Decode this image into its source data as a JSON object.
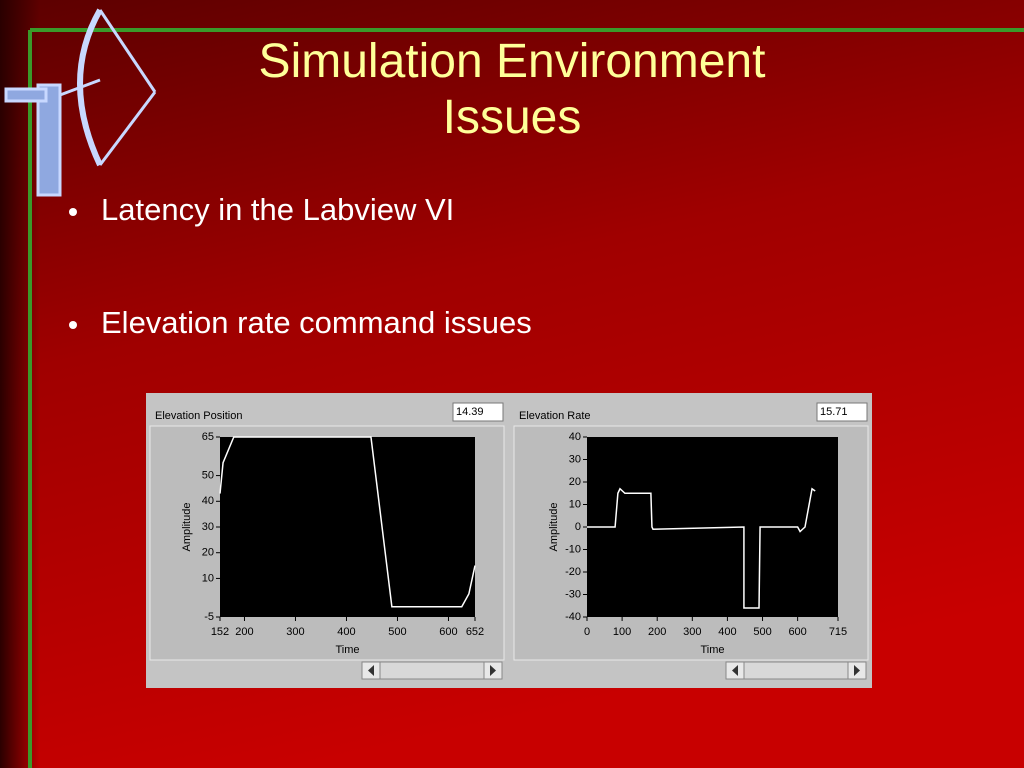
{
  "title": "Simulation Environment Issues",
  "bullets": [
    "Latency in the Labview VI",
    "Elevation rate command issues"
  ],
  "chart_data": [
    {
      "type": "line",
      "title": "Elevation Position",
      "readout": 14.39,
      "xlabel": "Time",
      "ylabel": "Amplitude",
      "x": [
        152,
        158,
        179,
        448,
        489,
        626,
        640,
        652
      ],
      "values": [
        43,
        55,
        65,
        65,
        -1,
        -1,
        4,
        15
      ],
      "color": "#ffffff",
      "grid": false,
      "xlim": [
        152,
        652
      ],
      "xticks": [
        152,
        200,
        300,
        400,
        500,
        600,
        652
      ],
      "ylim": [
        -5,
        65
      ],
      "yticks": [
        -5,
        10,
        20,
        30,
        40,
        50,
        65
      ]
    },
    {
      "type": "line",
      "title": "Elevation Rate",
      "readout": 15.71,
      "xlabel": "Time",
      "ylabel": "Amplitude",
      "x": [
        0,
        80,
        88,
        94,
        108,
        182,
        185,
        188,
        447,
        447,
        490,
        493,
        600,
        607,
        614,
        621,
        641,
        650
      ],
      "values": [
        0,
        0,
        15,
        17,
        15,
        15,
        0,
        -1,
        0,
        -36,
        -36,
        0,
        0,
        -2,
        -1,
        0,
        17,
        16
      ],
      "color": "#ffffff",
      "grid": false,
      "xlim": [
        0,
        715
      ],
      "xticks": [
        0,
        100,
        200,
        300,
        400,
        500,
        600,
        715
      ],
      "ylim": [
        -40,
        40
      ],
      "yticks": [
        -40,
        -30,
        -20,
        -10,
        0,
        10,
        20,
        30,
        40
      ]
    }
  ]
}
